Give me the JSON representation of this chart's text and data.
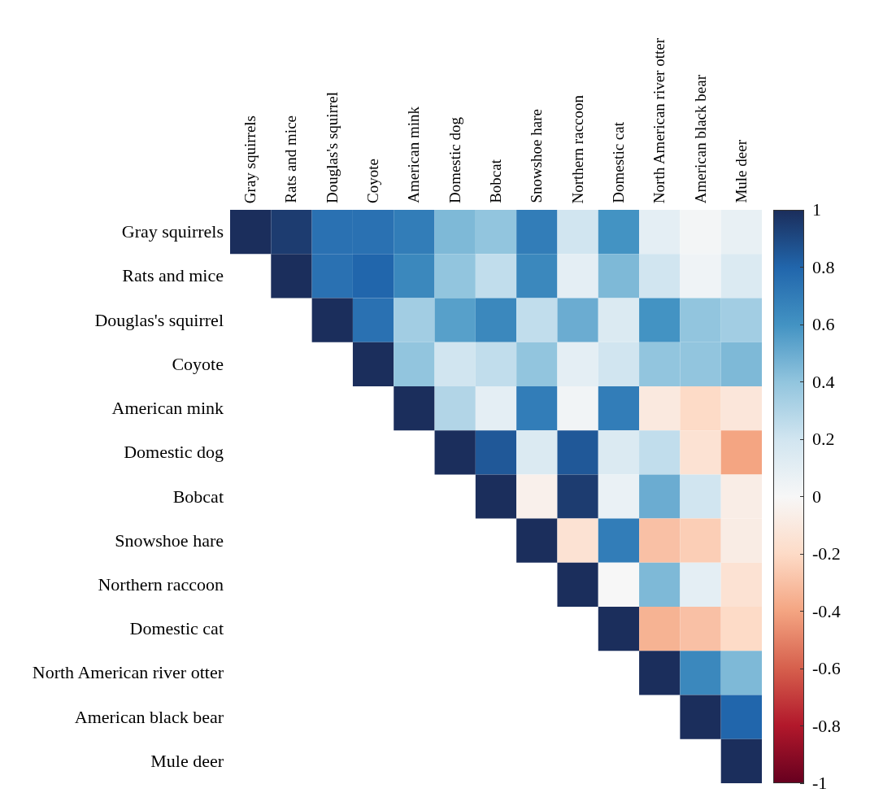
{
  "chart_data": {
    "type": "heatmap",
    "categories": [
      "Gray squirrels",
      "Rats and mice",
      "Douglas's squirrel",
      "Coyote",
      "American mink",
      "Domestic dog",
      "Bobcat",
      "Snowshoe hare",
      "Northern raccoon",
      "Domestic cat",
      "North American river otter",
      "American black bear",
      "Mule deer"
    ],
    "y_categories": [
      "Gray squirrels",
      "Rats and mice",
      "Douglas's squirrel",
      "Coyote",
      "American mink",
      "Domestic dog",
      "Bobcat",
      "Snowshoe hare",
      "Northern raccoon",
      "Domestic cat",
      "North American river otter",
      "American black bear",
      "Mule deer"
    ],
    "cells": [
      [
        1,
        0.95,
        0.75,
        0.75,
        0.7,
        0.45,
        0.4,
        0.7,
        0.2,
        0.6,
        0.1,
        0.02,
        0.08
      ],
      [
        null,
        1,
        0.75,
        0.8,
        0.65,
        0.4,
        0.25,
        0.65,
        0.1,
        0.45,
        0.2,
        0.04,
        0.15
      ],
      [
        null,
        null,
        1,
        0.75,
        0.35,
        0.55,
        0.65,
        0.25,
        0.5,
        0.15,
        0.6,
        0.4,
        0.35
      ],
      [
        null,
        null,
        null,
        1,
        0.4,
        0.2,
        0.25,
        0.4,
        0.1,
        0.2,
        0.4,
        0.4,
        0.45
      ],
      [
        null,
        null,
        null,
        null,
        1,
        0.3,
        0.1,
        0.7,
        0.03,
        0.7,
        -0.1,
        -0.2,
        -0.12
      ],
      [
        null,
        null,
        null,
        null,
        null,
        1,
        0.85,
        0.15,
        0.85,
        0.15,
        0.25,
        -0.15,
        -0.4
      ],
      [
        null,
        null,
        null,
        null,
        null,
        null,
        1,
        -0.05,
        0.95,
        0.07,
        0.5,
        0.2,
        -0.07
      ],
      [
        null,
        null,
        null,
        null,
        null,
        null,
        null,
        1,
        -0.15,
        0.7,
        -0.3,
        -0.25,
        -0.08
      ],
      [
        null,
        null,
        null,
        null,
        null,
        null,
        null,
        null,
        1,
        0,
        0.45,
        0.1,
        -0.15
      ],
      [
        null,
        null,
        null,
        null,
        null,
        null,
        null,
        null,
        null,
        1,
        -0.35,
        -0.3,
        -0.2
      ],
      [
        null,
        null,
        null,
        null,
        null,
        null,
        null,
        null,
        null,
        null,
        1,
        0.65,
        0.45
      ],
      [
        null,
        null,
        null,
        null,
        null,
        null,
        null,
        null,
        null,
        null,
        null,
        1,
        0.8
      ],
      [
        null,
        null,
        null,
        null,
        null,
        null,
        null,
        null,
        null,
        null,
        null,
        null,
        1
      ]
    ],
    "clim": [
      -1,
      1
    ],
    "cticks": [
      -1,
      -0.8,
      -0.6,
      -0.4,
      -0.2,
      0,
      0.2,
      0.4,
      0.6,
      0.8,
      1
    ]
  }
}
